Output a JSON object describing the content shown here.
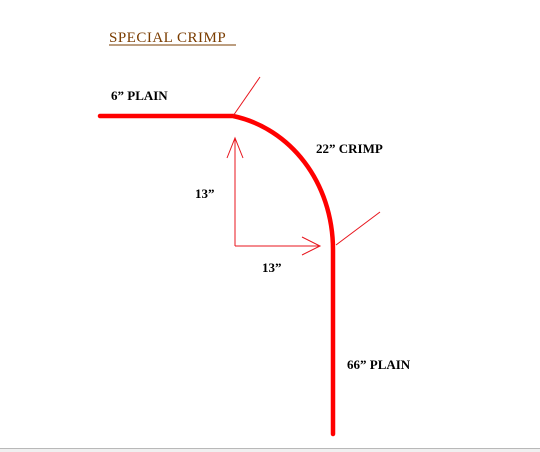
{
  "title": "SPECIAL  CRIMP",
  "labels": {
    "top_plain": "6”  PLAIN",
    "crimp": "22”  CRIMP",
    "vertical_dim": "13”",
    "horizontal_dim": "13”",
    "bottom_plain": "66”  PLAIN"
  },
  "colors": {
    "title": "#7a3c00",
    "path": "#ff0000",
    "dimension": "#e8141c",
    "text": "#000000"
  }
}
